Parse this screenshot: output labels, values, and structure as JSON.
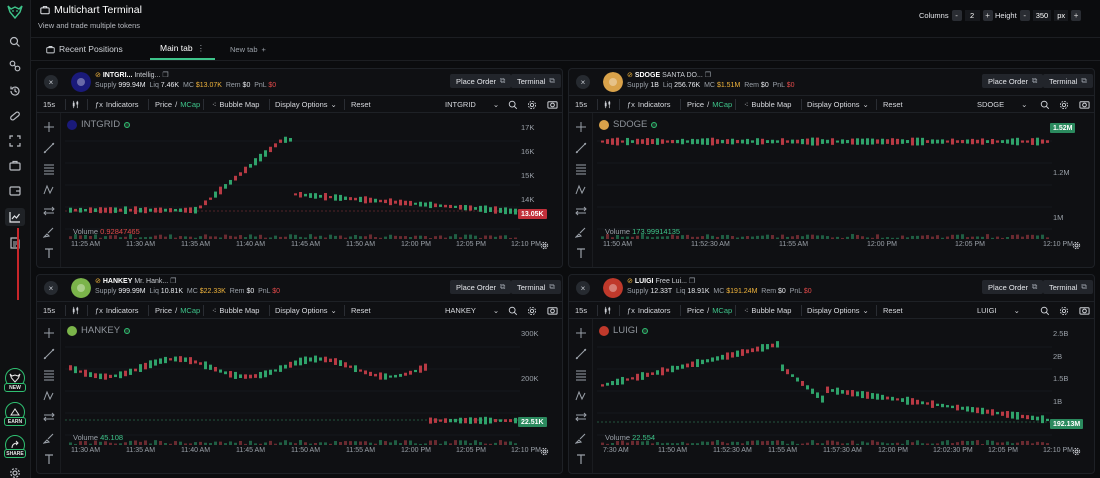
{
  "app": {
    "title": "Multichart Terminal",
    "subtitle": "View and trade multiple tokens"
  },
  "controls": {
    "columns_label": "Columns",
    "columns_value": "2",
    "height_label": "Height",
    "height_value": "350",
    "height_unit": "px",
    "minus": "-",
    "plus": "+"
  },
  "tabs": [
    {
      "label": "Recent Positions"
    },
    {
      "label": "Main tab",
      "active": true
    },
    {
      "label": "New tab"
    }
  ],
  "sidebar": {
    "icons": [
      "logo-icon",
      "search-icon",
      "link-icon",
      "history-icon",
      "pill-icon",
      "scan-icon",
      "wallet-icon",
      "card-icon",
      "chart-icon",
      "document-icon",
      "settings-icon"
    ],
    "badges": [
      "NEW",
      "EARN",
      "SHARE"
    ]
  },
  "toolbar": {
    "interval": "15s",
    "indicators": "Indicators",
    "price": "Price",
    "slash": "/",
    "mcap": "MCap",
    "bubble_map": "Bubble Map",
    "display_options": "Display Options",
    "reset": "Reset"
  },
  "buttons": {
    "place_order": "Place Order",
    "terminal": "Terminal",
    "close": "×"
  },
  "stat_labels": {
    "supply": "Supply",
    "liq": "Liq",
    "mc": "MC",
    "rem": "Rem",
    "pnl": "PnL"
  },
  "panels": [
    {
      "name": "INTGRI...",
      "desc": "Intellig...",
      "supply": "999.94M",
      "liq": "7.46K",
      "mc": "$13.07K",
      "rem": "$0",
      "pnl": "$0",
      "symbol": "INTGRID",
      "chart_symbol": "INTGRID",
      "icon_color": "#1a1a7a",
      "price_tag": "13.05K",
      "price_tag_color": "#c2303b",
      "volume_label": "Volume",
      "volume_value": "0.92847465",
      "volume_color": "red",
      "y_labels": [
        "17K",
        "16K",
        "15K",
        "14K"
      ],
      "x_labels": [
        "11:25 AM",
        "11:30 AM",
        "11:35 AM",
        "11:40 AM",
        "11:45 AM",
        "11:50 AM",
        "12:00 PM",
        "12:05 PM",
        "12:10 PM"
      ]
    },
    {
      "name": "SDOGE",
      "desc": "SANTA DO...",
      "supply": "1B",
      "liq": "256.76K",
      "mc": "$1.51M",
      "rem": "$0",
      "pnl": "$0",
      "symbol": "SDOGE",
      "chart_symbol": "SDOGE",
      "icon_color": "#d9a24a",
      "price_tag": "1.52M",
      "price_tag_color": "#2b8a5e",
      "volume_label": "Volume",
      "volume_value": "173.99914135",
      "volume_color": "green",
      "y_labels": [
        "1.4M",
        "1.2M",
        "1M"
      ],
      "x_labels": [
        "11:50 AM",
        "11:52:30 AM",
        "11:55 AM",
        "12:00 PM",
        "12:05 PM",
        "12:10 PM"
      ]
    },
    {
      "name": "HANKEY",
      "desc": "Mr. Hank...",
      "supply": "999.99M",
      "liq": "10.81K",
      "mc": "$22.33K",
      "rem": "$0",
      "pnl": "$0",
      "symbol": "HANKEY",
      "chart_symbol": "HANKEY",
      "icon_color": "#7bb44a",
      "price_tag": "22.51K",
      "price_tag_color": "#2b8a5e",
      "volume_label": "Volume",
      "volume_value": "45.108",
      "volume_color": "green",
      "y_labels": [
        "300K",
        "200K",
        "100K"
      ],
      "x_labels": [
        "11:30 AM",
        "11:35 AM",
        "11:40 AM",
        "11:45 AM",
        "11:50 AM",
        "11:55 AM",
        "12:00 PM",
        "12:05 PM",
        "12:10 PM"
      ]
    },
    {
      "name": "LUIGI",
      "desc": "Free Lui...",
      "supply": "12.33T",
      "liq": "18.91K",
      "mc": "$191.24M",
      "rem": "$0",
      "pnl": "$0",
      "symbol": "LUIGI",
      "chart_symbol": "LUIGI",
      "icon_color": "#c0392b",
      "price_tag": "192.13M",
      "price_tag_color": "#2b8a5e",
      "volume_label": "Volume",
      "volume_value": "22.554",
      "volume_color": "green",
      "y_labels": [
        "2.5B",
        "2B",
        "1.5B",
        "1B",
        "500M"
      ],
      "x_labels": [
        "7:30 AM",
        "11:50 AM",
        "11:52:30 AM",
        "11:55 AM",
        "11:57:30 AM",
        "12:00 PM",
        "12:02:30 PM",
        "12:05 PM",
        "12:10 PM"
      ]
    }
  ]
}
